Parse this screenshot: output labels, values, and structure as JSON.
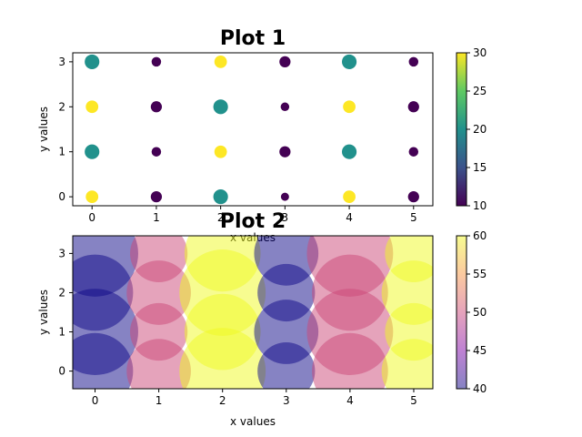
{
  "chart_data": [
    {
      "type": "scatter",
      "title": "Plot 1",
      "xlabel": "x values",
      "ylabel": "y values",
      "xlim": [
        -0.3,
        5.3
      ],
      "ylim": [
        -0.2,
        3.2
      ],
      "xticks": [
        0,
        1,
        2,
        3,
        4,
        5
      ],
      "yticks": [
        0,
        1,
        2,
        3
      ],
      "colormap": "viridis",
      "colorbar": {
        "range": [
          10,
          30
        ],
        "ticks": [
          10,
          15,
          20,
          25,
          30
        ]
      },
      "alpha": 1.0,
      "points": [
        {
          "x": 0,
          "y": 0,
          "c": 30,
          "s": 190
        },
        {
          "x": 1,
          "y": 0,
          "c": 10,
          "s": 150
        },
        {
          "x": 2,
          "y": 0,
          "c": 20,
          "s": 260
        },
        {
          "x": 3,
          "y": 0,
          "c": 10,
          "s": 80
        },
        {
          "x": 4,
          "y": 0,
          "c": 30,
          "s": 190
        },
        {
          "x": 5,
          "y": 0,
          "c": 10,
          "s": 150
        },
        {
          "x": 0,
          "y": 1,
          "c": 20,
          "s": 260
        },
        {
          "x": 1,
          "y": 1,
          "c": 10,
          "s": 110
        },
        {
          "x": 2,
          "y": 1,
          "c": 30,
          "s": 190
        },
        {
          "x": 3,
          "y": 1,
          "c": 10,
          "s": 150
        },
        {
          "x": 4,
          "y": 1,
          "c": 20,
          "s": 260
        },
        {
          "x": 5,
          "y": 1,
          "c": 10,
          "s": 110
        },
        {
          "x": 0,
          "y": 2,
          "c": 30,
          "s": 190
        },
        {
          "x": 1,
          "y": 2,
          "c": 10,
          "s": 150
        },
        {
          "x": 2,
          "y": 2,
          "c": 20,
          "s": 260
        },
        {
          "x": 3,
          "y": 2,
          "c": 10,
          "s": 90
        },
        {
          "x": 4,
          "y": 2,
          "c": 30,
          "s": 190
        },
        {
          "x": 5,
          "y": 2,
          "c": 10,
          "s": 150
        },
        {
          "x": 0,
          "y": 3,
          "c": 20,
          "s": 260
        },
        {
          "x": 1,
          "y": 3,
          "c": 10,
          "s": 110
        },
        {
          "x": 2,
          "y": 3,
          "c": 30,
          "s": 190
        },
        {
          "x": 3,
          "y": 3,
          "c": 10,
          "s": 150
        },
        {
          "x": 4,
          "y": 3,
          "c": 20,
          "s": 260
        },
        {
          "x": 5,
          "y": 3,
          "c": 10,
          "s": 110
        }
      ]
    },
    {
      "type": "scatter",
      "title": "Plot 2",
      "xlabel": "x values",
      "ylabel": "y values",
      "xlim": [
        -0.35,
        5.3
      ],
      "ylim": [
        -0.45,
        3.45
      ],
      "xticks": [
        0,
        1,
        2,
        3,
        4,
        5
      ],
      "yticks": [
        0,
        1,
        2,
        3
      ],
      "colormap": "plasma",
      "colorbar": {
        "range": [
          40,
          60
        ],
        "ticks": [
          40,
          45,
          50,
          55,
          60
        ]
      },
      "alpha": 0.5,
      "points": [
        {
          "x": 0,
          "y": 0,
          "c": 40,
          "s": 7000
        },
        {
          "x": 1,
          "y": 0,
          "c": 50,
          "s": 5000
        },
        {
          "x": 2,
          "y": 0,
          "c": 60,
          "s": 9000
        },
        {
          "x": 3,
          "y": 0,
          "c": 40,
          "s": 4000
        },
        {
          "x": 4,
          "y": 0,
          "c": 50,
          "s": 7000
        },
        {
          "x": 5,
          "y": 0,
          "c": 60,
          "s": 5000
        },
        {
          "x": 0,
          "y": 1,
          "c": 40,
          "s": 9000
        },
        {
          "x": 1,
          "y": 1,
          "c": 50,
          "s": 4000
        },
        {
          "x": 2,
          "y": 1,
          "c": 60,
          "s": 7000
        },
        {
          "x": 3,
          "y": 1,
          "c": 40,
          "s": 5000
        },
        {
          "x": 4,
          "y": 1,
          "c": 50,
          "s": 9000
        },
        {
          "x": 5,
          "y": 1,
          "c": 60,
          "s": 4000
        },
        {
          "x": 0,
          "y": 2,
          "c": 40,
          "s": 7000
        },
        {
          "x": 1,
          "y": 2,
          "c": 50,
          "s": 5000
        },
        {
          "x": 2,
          "y": 2,
          "c": 60,
          "s": 9000
        },
        {
          "x": 3,
          "y": 2,
          "c": 40,
          "s": 4000
        },
        {
          "x": 4,
          "y": 2,
          "c": 50,
          "s": 7000
        },
        {
          "x": 5,
          "y": 2,
          "c": 60,
          "s": 5000
        },
        {
          "x": 0,
          "y": 3,
          "c": 40,
          "s": 9000
        },
        {
          "x": 1,
          "y": 3,
          "c": 50,
          "s": 4000
        },
        {
          "x": 2,
          "y": 3,
          "c": 60,
          "s": 7000
        },
        {
          "x": 3,
          "y": 3,
          "c": 40,
          "s": 5000
        },
        {
          "x": 4,
          "y": 3,
          "c": 50,
          "s": 9000
        },
        {
          "x": 5,
          "y": 3,
          "c": 60,
          "s": 4000
        }
      ]
    }
  ]
}
